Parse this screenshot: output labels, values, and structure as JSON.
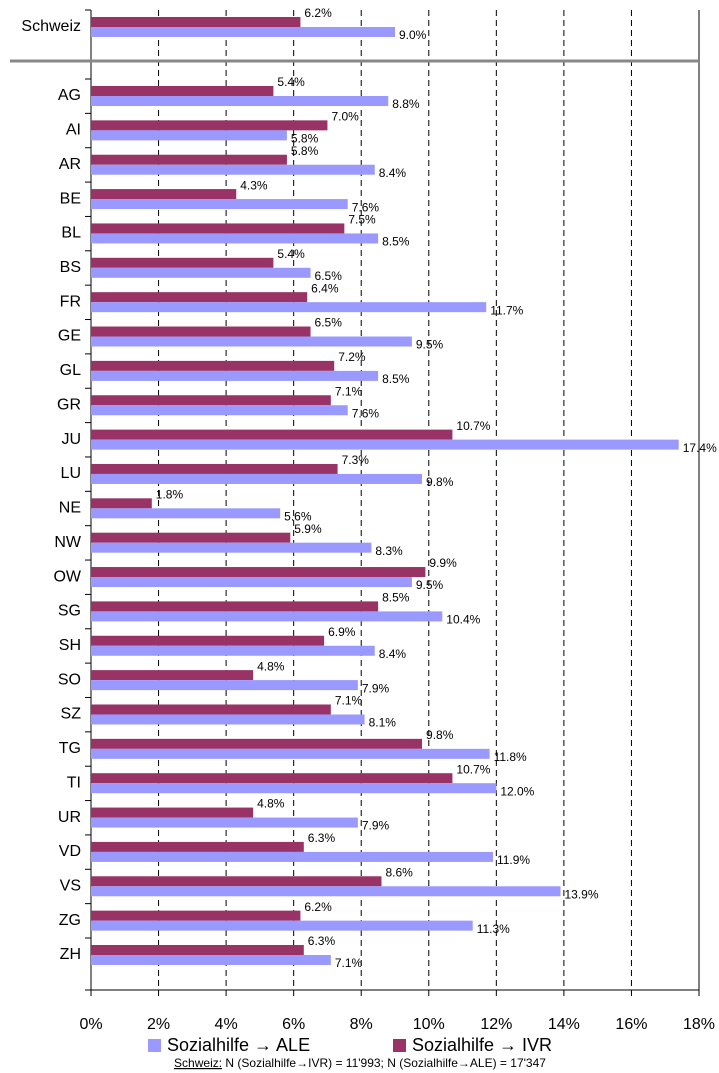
{
  "chart_data": {
    "type": "bar",
    "orientation": "horizontal",
    "categories": [
      "Schweiz",
      "AG",
      "AI",
      "AR",
      "BE",
      "BL",
      "BS",
      "FR",
      "GE",
      "GL",
      "GR",
      "JU",
      "LU",
      "NE",
      "NW",
      "OW",
      "SG",
      "SH",
      "SO",
      "SZ",
      "TG",
      "TI",
      "UR",
      "VD",
      "VS",
      "ZG",
      "ZH"
    ],
    "series": [
      {
        "name": "Sozialhilfe → ALE",
        "color": "#9999ff",
        "values": [
          9.0,
          8.8,
          5.8,
          8.4,
          7.6,
          8.5,
          6.5,
          11.7,
          9.5,
          8.5,
          7.6,
          17.4,
          9.8,
          5.6,
          8.3,
          9.5,
          10.4,
          8.4,
          7.9,
          8.1,
          11.8,
          12.0,
          7.9,
          11.9,
          13.9,
          11.3,
          7.1
        ],
        "value_labels": [
          "9.0%",
          "8.8%",
          "5.8%",
          "8.4%",
          "7.6%",
          "8.5%",
          "6.5%",
          "11.7%",
          "9.5%",
          "8.5%",
          "7.6%",
          "17.4%",
          "9.8%",
          "5.6%",
          "8.3%",
          "9.5%",
          "10.4%",
          "8.4%",
          "7.9%",
          "8.1%",
          "11.8%",
          "12.0%",
          "7.9%",
          "11.9%",
          "13.9%",
          "11.3%",
          "7.1%"
        ]
      },
      {
        "name": "Sozialhilfe → IVR",
        "color": "#993366",
        "values": [
          6.2,
          5.4,
          7.0,
          5.8,
          4.3,
          7.5,
          5.4,
          6.4,
          6.5,
          7.2,
          7.1,
          10.7,
          7.3,
          1.8,
          5.9,
          9.9,
          8.5,
          6.9,
          4.8,
          7.1,
          9.8,
          10.7,
          4.8,
          6.3,
          8.6,
          6.2,
          6.3
        ],
        "value_labels": [
          "6.2%",
          "5.4%",
          "7.0%",
          "5.8%",
          "4.3%",
          "7.5%",
          "5.4%",
          "6.4%",
          "6.5%",
          "7.2%",
          "7.1%",
          "10.7%",
          "7.3%",
          "1.8%",
          "5.9%",
          "9.9%",
          "8.5%",
          "6.9%",
          "4.8%",
          "7.1%",
          "9.8%",
          "10.7%",
          "4.8%",
          "6.3%",
          "8.6%",
          "6.2%",
          "6.3%"
        ]
      }
    ],
    "xlim": [
      0,
      18
    ],
    "xticks": [
      {
        "value": 0,
        "label": "0%"
      },
      {
        "value": 2,
        "label": "2%"
      },
      {
        "value": 4,
        "label": "4%"
      },
      {
        "value": 6,
        "label": "6%"
      },
      {
        "value": 8,
        "label": "8%"
      },
      {
        "value": 10,
        "label": "10%"
      },
      {
        "value": 12,
        "label": "12%"
      },
      {
        "value": 14,
        "label": "14%"
      },
      {
        "value": 16,
        "label": "16%"
      },
      {
        "value": 18,
        "label": "18%"
      }
    ],
    "grid": true,
    "footnote": {
      "label": "Schweiz:",
      "text": " N (Sozialhilfe→IVR) = 11'993; N (Sozialhilfe→ALE) = 17'347"
    }
  }
}
